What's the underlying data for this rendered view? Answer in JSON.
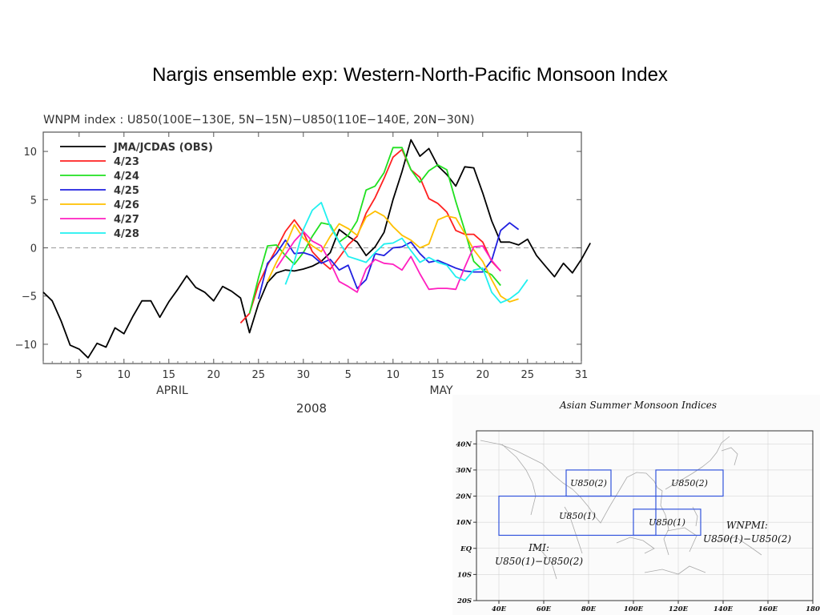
{
  "slide": {
    "title": "Nargis ensemble exp: Western-North-Pacific Monsoon Index"
  },
  "chart_data": [
    {
      "type": "line",
      "title": "WNPM index : U850(100E−130E, 5N−15N)−U850(110E−140E, 20N−30N)",
      "xlabel": "2008",
      "ylabel": "",
      "month_labels": [
        "APRIL",
        "MAY"
      ],
      "x_ticks": [
        {
          "day": 5,
          "label": "5"
        },
        {
          "day": 10,
          "label": "10"
        },
        {
          "day": 15,
          "label": "15"
        },
        {
          "day": 20,
          "label": "20"
        },
        {
          "day": 25,
          "label": "25"
        },
        {
          "day": 30,
          "label": "30"
        },
        {
          "day": 35,
          "label": "5"
        },
        {
          "day": 40,
          "label": "10"
        },
        {
          "day": 45,
          "label": "15"
        },
        {
          "day": 50,
          "label": "20"
        },
        {
          "day": 55,
          "label": "25"
        },
        {
          "day": 61,
          "label": "31"
        }
      ],
      "xlim": [
        1,
        61
      ],
      "ylim": [
        -12,
        12
      ],
      "y_ticks": [
        10,
        5,
        0,
        -5,
        -10
      ],
      "zero_line": "dashed",
      "legend_position": "top-left",
      "colors": {
        "axis": "#555555",
        "zero": "#999999"
      },
      "series": [
        {
          "name": "JMA/JCDAS (OBS)",
          "color": "#000000",
          "x_start": 1,
          "values": [
            -4.6,
            -5.5,
            -7.6,
            -10.1,
            -10.5,
            -11.4,
            -9.9,
            -10.3,
            -8.3,
            -8.9,
            -7.1,
            -5.5,
            -5.5,
            -7.2,
            -5.6,
            -4.3,
            -2.9,
            -4.1,
            -4.6,
            -5.5,
            -4.0,
            -4.5,
            -5.2,
            -8.8,
            -5.8,
            -3.6,
            -2.6,
            -2.3,
            -2.4,
            -2.2,
            -1.9,
            -1.4,
            -0.5,
            1.9,
            1.2,
            0.6,
            -0.8,
            0.1,
            1.6,
            5.0,
            7.9,
            11.2,
            9.5,
            10.3,
            8.5,
            7.6,
            6.4,
            8.4,
            8.3,
            5.7,
            2.8,
            0.6,
            0.6,
            0.3,
            0.9,
            -0.8,
            -1.9,
            -3.0,
            -1.6,
            -2.6,
            -1.2,
            0.5
          ]
        },
        {
          "name": "4/23",
          "color": "#ff2020",
          "x_start": 23,
          "values": [
            -7.8,
            -6.8,
            -3.8,
            -1.8,
            -0.1,
            1.7,
            2.9,
            1.6,
            -0.4,
            -1.4,
            -2.2,
            -1.0,
            0.3,
            1.2,
            3.6,
            5.2,
            7.2,
            9.4,
            10.2,
            8.1,
            7.3,
            5.1,
            4.6,
            3.7,
            1.8,
            1.4,
            1.4,
            0.6,
            -1.4,
            -2.4
          ]
        },
        {
          "name": "4/24",
          "color": "#20e020",
          "x_start": 24,
          "values": [
            -6.8,
            -3.1,
            0.2,
            0.3,
            -0.8,
            -1.7,
            -0.5,
            1.2,
            2.6,
            2.4,
            0.6,
            1.3,
            2.8,
            6.0,
            6.4,
            7.8,
            10.4,
            10.4,
            8.1,
            6.8,
            8.0,
            8.6,
            8.1,
            4.8,
            1.8,
            -1.4,
            -2.3,
            -2.8,
            -3.9
          ]
        },
        {
          "name": "4/25",
          "color": "#2020e0",
          "x_start": 25,
          "values": [
            -5.3,
            -1.6,
            -0.6,
            0.8,
            -0.6,
            -0.5,
            -0.8,
            -1.6,
            -1.2,
            -2.3,
            -1.8,
            -4.2,
            -3.3,
            -0.6,
            -0.8,
            0.0,
            0.1,
            0.6,
            -0.6,
            -1.5,
            -1.3,
            -1.7,
            -2.1,
            -2.4,
            -2.5,
            -2.5,
            -1.3,
            1.8,
            2.6,
            1.9
          ]
        },
        {
          "name": "4/26",
          "color": "#ffc000",
          "x_start": 26,
          "values": [
            -3.5,
            -1.5,
            0.2,
            2.4,
            1.0,
            0.2,
            -0.4,
            1.2,
            2.5,
            2.0,
            1.3,
            3.2,
            3.8,
            3.3,
            2.2,
            1.3,
            0.8,
            0.0,
            0.4,
            2.9,
            3.3,
            3.1,
            1.5,
            -0.2,
            -1.4,
            -3.3,
            -5.0,
            -5.6,
            -5.3
          ]
        },
        {
          "name": "4/27",
          "color": "#ff20c0",
          "x_start": 27,
          "values": [
            -2.1,
            -0.7,
            0.7,
            1.7,
            0.7,
            0.2,
            -1.5,
            -3.5,
            -4.0,
            -4.6,
            -2.2,
            -1.2,
            -1.6,
            -1.7,
            -2.3,
            -0.9,
            -2.7,
            -4.3,
            -4.2,
            -4.2,
            -4.3,
            -2.0,
            0.1,
            0.2,
            -1.3,
            -2.4
          ]
        },
        {
          "name": "4/28",
          "color": "#20f0f0",
          "x_start": 28,
          "values": [
            -3.8,
            -1.4,
            1.9,
            3.9,
            4.7,
            2.2,
            0.6,
            -0.9,
            -1.2,
            -1.5,
            -0.5,
            0.4,
            0.5,
            1.0,
            -0.3,
            -1.5,
            -1.0,
            -1.5,
            -1.8,
            -3.0,
            -3.4,
            -2.3,
            -2.1,
            -4.6,
            -5.7,
            -5.3,
            -4.6,
            -3.3
          ]
        }
      ]
    },
    {
      "type": "map",
      "title": "Asian Summer Monsoon Indices",
      "lon_ticks": [
        "40E",
        "60E",
        "80E",
        "100E",
        "120E",
        "140E",
        "160E",
        "180"
      ],
      "lat_ticks": [
        "40N",
        "30N",
        "20N",
        "10N",
        "EQ",
        "10S",
        "20S"
      ],
      "lon_range": [
        30,
        180
      ],
      "lat_range": [
        -20,
        45
      ],
      "boxes": [
        {
          "label": "U850(2)",
          "lon": [
            70,
            90
          ],
          "lat": [
            20,
            30
          ]
        },
        {
          "label": "U850(2)",
          "lon": [
            110,
            140
          ],
          "lat": [
            20,
            30
          ]
        },
        {
          "label": "U850(1)",
          "lon": [
            40,
            110
          ],
          "lat": [
            5,
            20
          ]
        },
        {
          "label": "U850(1)",
          "lon": [
            100,
            130
          ],
          "lat": [
            5,
            15
          ]
        }
      ],
      "annotations": {
        "imi_label": "IMI:",
        "imi_formula": "U850(1)−U850(2)",
        "wnpmi_label": "WNPMI:",
        "wnpmi_formula": "U850(1)−U850(2)"
      },
      "colors": {
        "box": "#3355dd",
        "grid": "#cccccc",
        "coast": "#aaaaaa"
      }
    }
  ]
}
